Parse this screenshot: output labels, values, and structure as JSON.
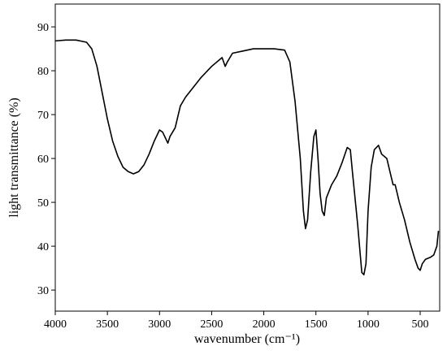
{
  "chart_data": {
    "type": "line",
    "xlabel": "wavenumber (cm⁻¹)",
    "ylabel": "light transmittance (%)",
    "x": [
      4000,
      3900,
      3800,
      3700,
      3650,
      3600,
      3550,
      3500,
      3450,
      3400,
      3350,
      3300,
      3250,
      3200,
      3150,
      3100,
      3050,
      3000,
      2970,
      2930,
      2920,
      2900,
      2850,
      2800,
      2750,
      2700,
      2600,
      2500,
      2400,
      2370,
      2350,
      2300,
      2200,
      2100,
      2000,
      1900,
      1800,
      1750,
      1700,
      1650,
      1620,
      1600,
      1580,
      1550,
      1520,
      1500,
      1480,
      1460,
      1440,
      1420,
      1400,
      1350,
      1300,
      1250,
      1200,
      1170,
      1150,
      1100,
      1060,
      1040,
      1020,
      1000,
      970,
      940,
      900,
      870,
      820,
      790,
      760,
      740,
      700,
      650,
      600,
      550,
      520,
      500,
      480,
      450,
      400,
      370,
      340,
      325
    ],
    "values": [
      86.8,
      87,
      87,
      86.5,
      85,
      81,
      75,
      69,
      64,
      60.5,
      58,
      57,
      56.5,
      57,
      58.5,
      61,
      64,
      66.5,
      66,
      64,
      63.5,
      65,
      67,
      72,
      74,
      75.5,
      78.5,
      81,
      83,
      81,
      82,
      84,
      84.5,
      85,
      85,
      85,
      84.7,
      82,
      73,
      60,
      48,
      44,
      46,
      57,
      65,
      66.5,
      60,
      52,
      48,
      47,
      51,
      54,
      56,
      59,
      62.5,
      62,
      57,
      45,
      34,
      33.5,
      36,
      48,
      58,
      62,
      63,
      61,
      60,
      57,
      54,
      54,
      50,
      46,
      41,
      37,
      35,
      34.5,
      36,
      37,
      37.5,
      38,
      40,
      43.5
    ],
    "color": "#000000",
    "xlim": [
      4000,
      313
    ],
    "ylim": [
      25.2,
      95.2
    ],
    "xticks": [
      4000,
      3500,
      3000,
      2500,
      2000,
      1500,
      1000,
      500
    ],
    "yticks": [
      30,
      40,
      50,
      60,
      70,
      80,
      90
    ]
  }
}
